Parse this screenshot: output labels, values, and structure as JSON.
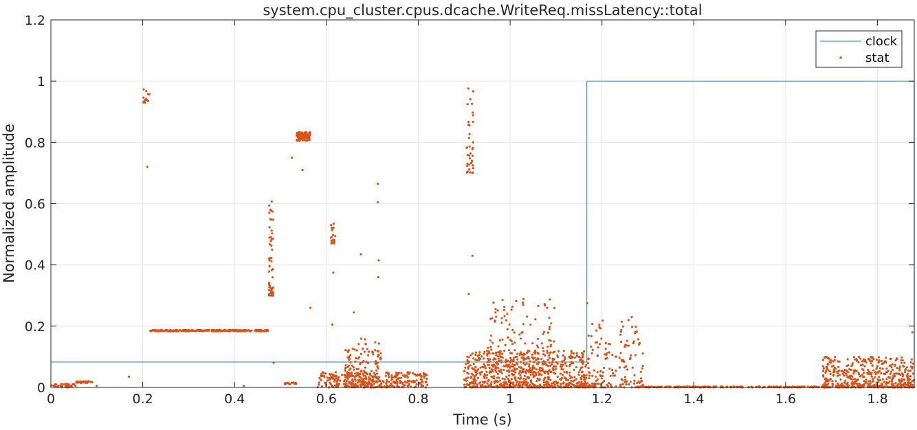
{
  "chart_data": {
    "type": "scatter",
    "title": "system.cpu_cluster.cpus.dcache.WriteReq.missLatency::total",
    "xlabel": "Time (s)",
    "ylabel": "Normalized amplitude",
    "xlim": [
      0,
      1.88
    ],
    "ylim": [
      0,
      1.2
    ],
    "xticks": [
      0,
      0.2,
      0.4,
      0.6,
      0.8,
      1,
      1.2,
      1.4,
      1.6,
      1.8
    ],
    "xtick_labels": [
      "0",
      "0.2",
      "0.4",
      "0.6",
      "0.8",
      "1",
      "1.2",
      "1.4",
      "1.6",
      "1.8"
    ],
    "yticks": [
      0,
      0.2,
      0.4,
      0.6,
      0.8,
      1,
      1.2
    ],
    "ytick_labels": [
      "0",
      "0.2",
      "0.4",
      "0.6",
      "0.8",
      "1",
      "1.2"
    ],
    "grid": true,
    "legend_position": "top-right",
    "colors": {
      "clock": "#4a9bbf",
      "stat": "#d95319",
      "grid": "#e6e6e6",
      "axis": "#262626"
    },
    "series": [
      {
        "name": "clock",
        "kind": "line",
        "x": [
          0,
          1.167,
          1.167,
          1.88,
          1.88
        ],
        "y": [
          0.083,
          0.083,
          1.0,
          1.0,
          0.083
        ]
      },
      {
        "name": "stat",
        "kind": "scatter",
        "clusters": [
          {
            "x": [
              0.0,
              0.055
            ],
            "y": [
              0.0,
              0.012
            ],
            "n": 40
          },
          {
            "x": [
              0.055,
              0.09
            ],
            "y": [
              0.014,
              0.02
            ],
            "n": 30
          },
          {
            "x": [
              0.2,
              0.215
            ],
            "y": [
              0.93,
              0.985
            ],
            "n": 14
          },
          {
            "x": [
              0.215,
              0.475
            ],
            "y": [
              0.183,
              0.188
            ],
            "n": 260
          },
          {
            "x": [
              0.475,
              0.485
            ],
            "y": [
              0.3,
              0.65
            ],
            "n": 60
          },
          {
            "x": [
              0.505,
              0.535
            ],
            "y": [
              0.01,
              0.016
            ],
            "n": 20
          },
          {
            "x": [
              0.535,
              0.565
            ],
            "y": [
              0.805,
              0.835
            ],
            "n": 90
          },
          {
            "x": [
              0.61,
              0.62
            ],
            "y": [
              0.47,
              0.54
            ],
            "n": 22
          },
          {
            "x": [
              0.905,
              0.92
            ],
            "y": [
              0.7,
              1.0
            ],
            "n": 40
          },
          {
            "x": [
              0.58,
              0.82
            ],
            "y": [
              0.0,
              0.05
            ],
            "n": 300
          },
          {
            "x": [
              0.64,
              0.72
            ],
            "y": [
              0.0,
              0.16
            ],
            "n": 160
          },
          {
            "x": [
              0.9,
              1.17
            ],
            "y": [
              0.0,
              0.12
            ],
            "n": 700
          },
          {
            "x": [
              0.95,
              1.1
            ],
            "y": [
              0.05,
              0.29
            ],
            "n": 160
          },
          {
            "x": [
              1.17,
              1.29
            ],
            "y": [
              0.0,
              0.22
            ],
            "n": 170
          },
          {
            "x": [
              1.29,
              1.68
            ],
            "y": [
              0.0,
              0.003
            ],
            "n": 200
          },
          {
            "x": [
              1.68,
              1.88
            ],
            "y": [
              0.0,
              0.1
            ],
            "n": 500
          }
        ],
        "outliers": {
          "x": [
            0.1,
            0.17,
            0.21,
            0.42,
            0.485,
            0.525,
            0.548,
            0.565,
            0.615,
            0.613,
            0.66,
            0.675,
            0.712,
            0.712,
            0.714,
            0.713,
            0.91,
            0.918,
            1.168,
            1.265,
            1.282,
            1.876
          ],
          "y": [
            0.005,
            0.035,
            0.72,
            0.005,
            0.08,
            0.75,
            0.71,
            0.26,
            0.375,
            0.205,
            0.245,
            0.435,
            0.665,
            0.605,
            0.415,
            0.36,
            0.305,
            0.43,
            0.275,
            0.23,
            0.145,
            0.18
          ]
        }
      }
    ]
  }
}
